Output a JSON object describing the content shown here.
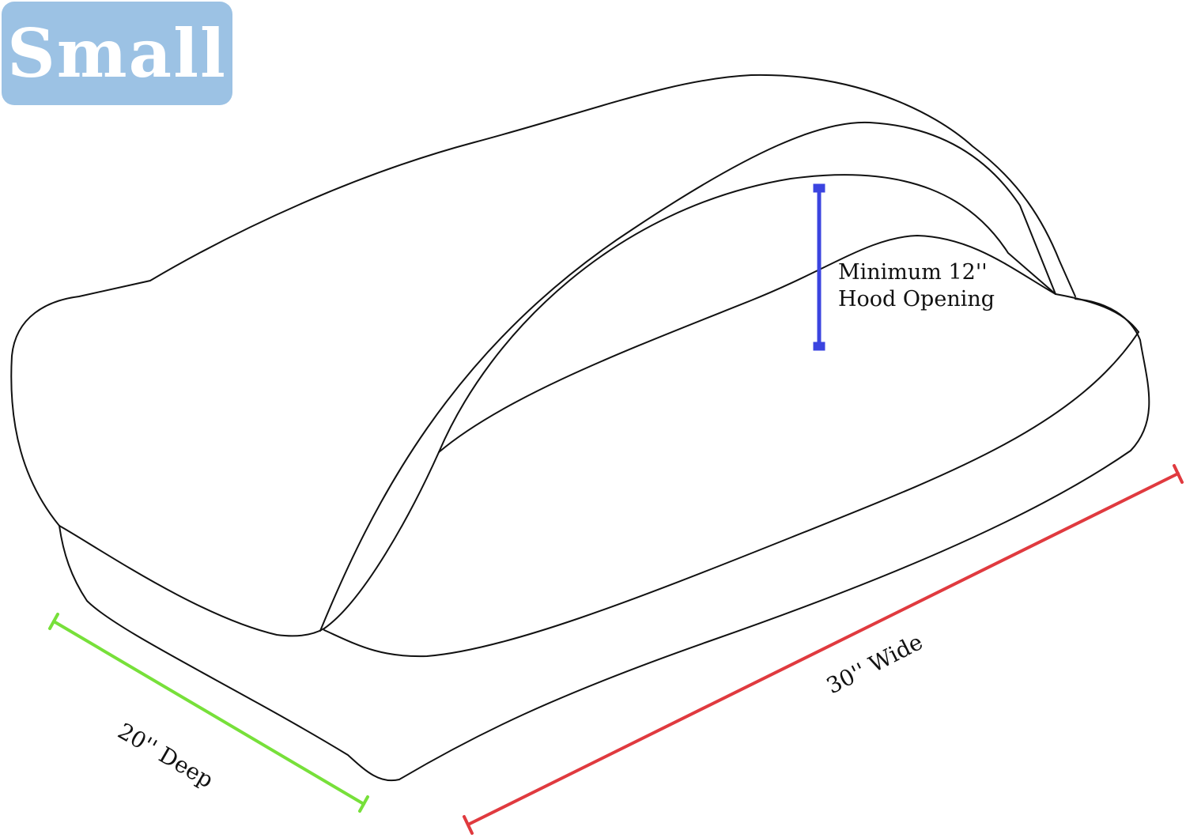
{
  "size_badge": "Small",
  "dimensions": {
    "hood_opening": {
      "line1": "Minimum 12''",
      "line2": "Hood Opening",
      "color": "#3b44e0"
    },
    "depth": {
      "label": "20'' Deep",
      "color": "#77e03a"
    },
    "width": {
      "label": "30'' Wide",
      "color": "#e03a3f"
    }
  },
  "colors": {
    "badge": "#9cc2e4",
    "outline": "#111111"
  }
}
